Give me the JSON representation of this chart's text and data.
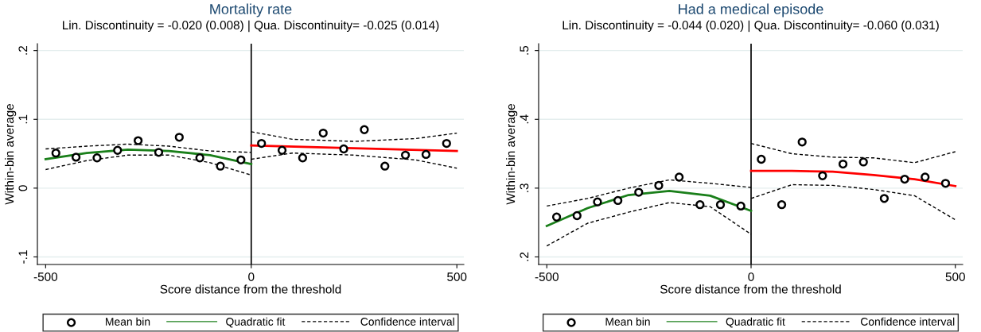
{
  "chart_data": [
    {
      "type": "scatter",
      "title": "Mortality rate",
      "subtitle": "Lin. Discontinuity = -0.020 (0.008) | Qua. Discontinuity= -0.025 (0.014)",
      "xlabel": "Score distance from the threshold",
      "ylabel": "Within-bin average",
      "xlim": [
        -520,
        517
      ],
      "ylim": [
        -0.111,
        0.21
      ],
      "xticks": [
        -500,
        0,
        500
      ],
      "yticks": [
        {
          "value": -0.1,
          "label": "-.1"
        },
        {
          "value": 0,
          "label": "0"
        },
        {
          "value": 0.1,
          "label": ".1"
        },
        {
          "value": 0.2,
          "label": ".2"
        }
      ],
      "grid": "y",
      "legend": "bottom",
      "ref_lines": [
        {
          "axis": "x",
          "value": 0,
          "color": "#000000"
        }
      ],
      "series": [
        {
          "name": "Mean bin",
          "marker": "circle",
          "color": "#000000",
          "x": [
            -475,
            -426,
            -375,
            -325,
            -275,
            -225,
            -175,
            -125,
            -75,
            -25,
            25,
            75,
            125,
            175,
            225,
            275,
            325,
            375,
            425,
            475
          ],
          "values": [
            0.051,
            0.045,
            0.044,
            0.055,
            0.069,
            0.052,
            0.074,
            0.044,
            0.032,
            0.041,
            0.065,
            0.055,
            0.044,
            0.08,
            0.057,
            0.085,
            0.032,
            0.048,
            0.049,
            0.065
          ]
        },
        {
          "name": "Quadratic fit",
          "type": "line",
          "line_style": "solid",
          "color": "#1a7f1a",
          "x": [
            -500,
            -400,
            -300,
            -200,
            -100,
            0
          ],
          "values": [
            0.042,
            0.051,
            0.056,
            0.054,
            0.048,
            0.035
          ]
        },
        {
          "type": "line",
          "line_style": "solid",
          "color": "#ff0000",
          "x": [
            0,
            250,
            500
          ],
          "values": [
            0.062,
            0.058,
            0.054
          ]
        },
        {
          "name": "Confidence interval",
          "type": "line",
          "line_style": "dashed",
          "color": "#000000",
          "x": [
            -500,
            -400,
            -300,
            -200,
            -100,
            0
          ],
          "values": [
            0.057,
            0.061,
            0.064,
            0.061,
            0.054,
            0.052
          ]
        },
        {
          "type": "line",
          "line_style": "dashed",
          "color": "#000000",
          "x": [
            -500,
            -400,
            -300,
            -200,
            -100,
            0
          ],
          "values": [
            0.027,
            0.04,
            0.048,
            0.048,
            0.037,
            0.019
          ]
        },
        {
          "type": "line",
          "line_style": "dashed",
          "color": "#000000",
          "x": [
            0,
            100,
            250,
            400,
            500
          ],
          "values": [
            0.082,
            0.071,
            0.068,
            0.072,
            0.08
          ]
        },
        {
          "type": "line",
          "line_style": "dashed",
          "color": "#000000",
          "x": [
            0,
            100,
            250,
            400,
            500
          ],
          "values": [
            0.042,
            0.051,
            0.048,
            0.041,
            0.029
          ]
        }
      ]
    },
    {
      "type": "scatter",
      "title": "Had a medical episode",
      "subtitle": "Lin. Discontinuity = -0.044 (0.020) | Qua. Discontinuity= -0.060 (0.031)",
      "xlabel": "Score distance from the threshold",
      "ylabel": "Within-bin average",
      "xlim": [
        -520,
        518
      ],
      "ylim": [
        0.189,
        0.51
      ],
      "xticks": [
        -500,
        0,
        500
      ],
      "yticks": [
        {
          "value": 0.2,
          "label": ".2"
        },
        {
          "value": 0.3,
          "label": ".3"
        },
        {
          "value": 0.4,
          "label": ".4"
        },
        {
          "value": 0.5,
          "label": ".5"
        }
      ],
      "grid": "y",
      "legend": "bottom",
      "ref_lines": [
        {
          "axis": "x",
          "value": 0,
          "color": "#000000"
        }
      ],
      "series": [
        {
          "name": "Mean bin",
          "marker": "circle",
          "color": "#000000",
          "x": [
            -476,
            -426,
            -376,
            -326,
            -275,
            -226,
            -176,
            -125,
            -75,
            -25,
            25,
            75,
            125,
            175,
            225,
            275,
            326,
            376,
            426,
            476
          ],
          "values": [
            0.258,
            0.26,
            0.28,
            0.282,
            0.294,
            0.304,
            0.316,
            0.276,
            0.276,
            0.274,
            0.342,
            0.276,
            0.367,
            0.318,
            0.335,
            0.338,
            0.285,
            0.313,
            0.316,
            0.307
          ]
        },
        {
          "name": "Quadratic fit",
          "type": "line",
          "line_style": "solid",
          "color": "#1a7f1a",
          "x": [
            -500,
            -400,
            -300,
            -200,
            -100,
            0
          ],
          "values": [
            0.245,
            0.271,
            0.29,
            0.296,
            0.289,
            0.267
          ]
        },
        {
          "type": "line",
          "line_style": "solid",
          "color": "#ff0000",
          "x": [
            0,
            100,
            200,
            300,
            400,
            500
          ],
          "values": [
            0.325,
            0.325,
            0.324,
            0.319,
            0.313,
            0.303
          ]
        },
        {
          "name": "Confidence interval",
          "type": "line",
          "line_style": "dashed",
          "color": "#000000",
          "x": [
            -500,
            -400,
            -300,
            -200,
            -100,
            0
          ],
          "values": [
            0.274,
            0.285,
            0.3,
            0.312,
            0.307,
            0.301
          ]
        },
        {
          "type": "line",
          "line_style": "dashed",
          "color": "#000000",
          "x": [
            -500,
            -400,
            -300,
            -200,
            -100,
            0
          ],
          "values": [
            0.216,
            0.249,
            0.265,
            0.279,
            0.273,
            0.233
          ]
        },
        {
          "type": "line",
          "line_style": "dashed",
          "color": "#000000",
          "x": [
            0,
            100,
            200,
            300,
            400,
            500
          ],
          "values": [
            0.365,
            0.35,
            0.345,
            0.344,
            0.337,
            0.353
          ]
        },
        {
          "type": "line",
          "line_style": "dashed",
          "color": "#000000",
          "x": [
            0,
            100,
            200,
            300,
            400,
            500
          ],
          "values": [
            0.285,
            0.305,
            0.304,
            0.298,
            0.289,
            0.254
          ]
        }
      ]
    }
  ]
}
